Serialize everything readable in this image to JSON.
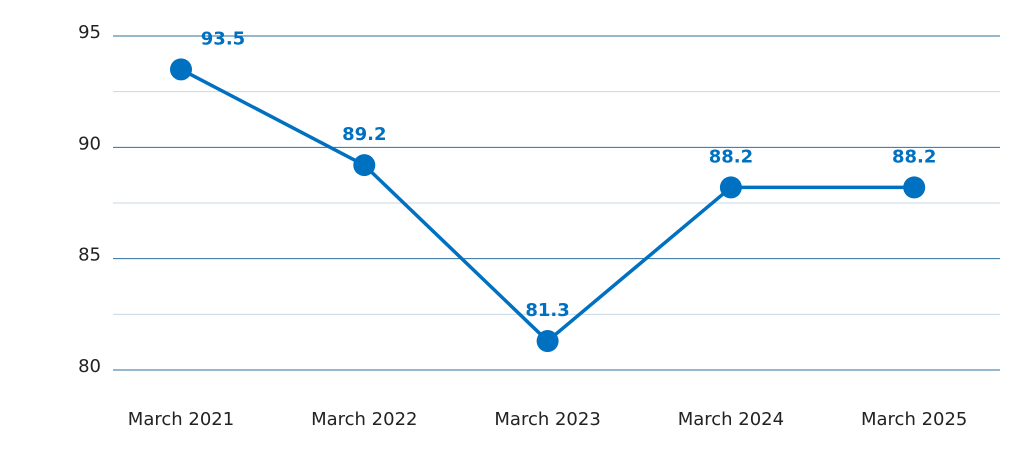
{
  "chart_data": {
    "type": "line",
    "categories": [
      "March 2021",
      "March 2022",
      "March 2023",
      "March 2024",
      "March 2025"
    ],
    "series": [
      {
        "name": null,
        "color": "#0070c0",
        "values": [
          93.5,
          89.2,
          81.3,
          88.2,
          88.2
        ]
      }
    ],
    "ylim": [
      80,
      95
    ],
    "yticks": [
      80,
      85,
      90,
      95
    ],
    "minor_yticks": [
      82.5,
      87.5,
      92.5
    ],
    "grid": true
  }
}
